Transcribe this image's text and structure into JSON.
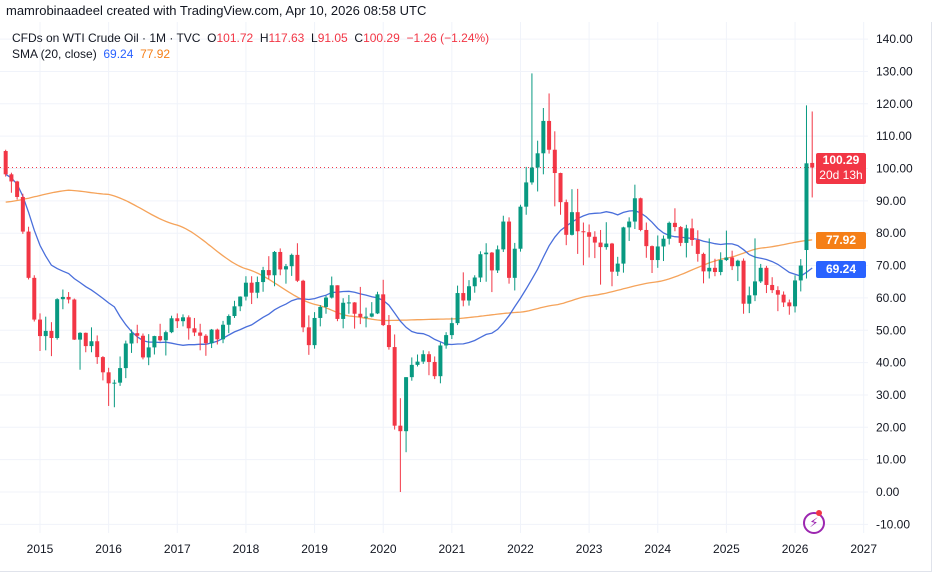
{
  "credit": "mamrobinaadeel created with TradingView.com, Apr 10, 2026 08:58 UTC",
  "legend": {
    "symbol": "CFDs on WTI Crude Oil · 1M · TVC",
    "o_label": "O",
    "o": "101.72",
    "h_label": "H",
    "h": "117.63",
    "l_label": "L",
    "l": "91.05",
    "c_label": "C",
    "c": "100.29",
    "change": "−1.26 (−1.24%)",
    "sma_label": "SMA (20, close)",
    "sma_fast": "69.24",
    "sma_slow": "77.92"
  },
  "price_label": {
    "value": "100.29",
    "countdown": "20d 13h"
  },
  "sma_fast_label": "69.24",
  "sma_slow_label": "77.92",
  "colors": {
    "up": "#089981",
    "down": "#f23645",
    "sma_fast": "#4a6fdb",
    "sma_slow": "#f5a35a",
    "sma_slow_box": "#f57f17",
    "sma_fast_box": "#2962ff"
  },
  "icons": {
    "bottom_right": "lightning-icon"
  },
  "chart_data": {
    "type": "candlestick",
    "interval": "1M",
    "ylim": [
      -10,
      140
    ],
    "y_ticks": [
      "140.00",
      "130.00",
      "120.00",
      "110.00",
      "100.00",
      "90.00",
      "80.00",
      "70.00",
      "60.00",
      "50.00",
      "40.00",
      "30.00",
      "20.00",
      "10.00",
      "0.00",
      "-10.00"
    ],
    "x_ticks": [
      "2015",
      "2016",
      "2017",
      "2018",
      "2019",
      "2020",
      "2021",
      "2022",
      "2023",
      "2024",
      "2025",
      "2026",
      "2027"
    ],
    "grid": true,
    "last_price": 100.29,
    "candles": [
      [
        "2014-07",
        105.4,
        105.8,
        97.5,
        98.2
      ],
      [
        "2014-08",
        98.2,
        98.7,
        92.5,
        96.0
      ],
      [
        "2014-09",
        96.0,
        96.2,
        90.4,
        91.2
      ],
      [
        "2014-10",
        91.2,
        92.2,
        79.8,
        80.5
      ],
      [
        "2014-11",
        80.5,
        82.0,
        65.7,
        66.2
      ],
      [
        "2014-12",
        66.2,
        67.0,
        52.7,
        53.3
      ],
      [
        "2015-01",
        53.3,
        55.2,
        43.6,
        48.2
      ],
      [
        "2015-02",
        48.2,
        54.2,
        43.8,
        49.8
      ],
      [
        "2015-03",
        49.8,
        52.5,
        42.0,
        47.6
      ],
      [
        "2015-04",
        47.6,
        59.9,
        47.1,
        59.6
      ],
      [
        "2015-05",
        59.6,
        62.6,
        56.5,
        60.3
      ],
      [
        "2015-06",
        60.3,
        61.8,
        58.3,
        59.5
      ],
      [
        "2015-07",
        59.5,
        59.8,
        47.0,
        47.1
      ],
      [
        "2015-08",
        47.1,
        49.4,
        37.8,
        49.2
      ],
      [
        "2015-09",
        49.2,
        49.3,
        43.2,
        45.1
      ],
      [
        "2015-10",
        45.1,
        50.9,
        43.2,
        46.6
      ],
      [
        "2015-11",
        46.6,
        48.4,
        39.6,
        41.7
      ],
      [
        "2015-12",
        41.7,
        42.0,
        34.5,
        37.0
      ],
      [
        "2016-01",
        37.0,
        38.4,
        26.6,
        33.6
      ],
      [
        "2016-02",
        33.6,
        34.7,
        26.2,
        33.8
      ],
      [
        "2016-03",
        33.8,
        41.9,
        32.8,
        38.3
      ],
      [
        "2016-04",
        38.3,
        46.8,
        35.2,
        45.9
      ],
      [
        "2016-05",
        45.9,
        50.2,
        43.0,
        49.1
      ],
      [
        "2016-06",
        49.1,
        51.7,
        46.0,
        48.3
      ],
      [
        "2016-07",
        48.3,
        49.0,
        41.0,
        41.6
      ],
      [
        "2016-08",
        41.6,
        48.8,
        39.2,
        44.7
      ],
      [
        "2016-09",
        44.7,
        48.3,
        42.5,
        48.2
      ],
      [
        "2016-10",
        48.2,
        52.0,
        46.5,
        46.9
      ],
      [
        "2016-11",
        46.9,
        49.9,
        42.2,
        49.4
      ],
      [
        "2016-12",
        49.4,
        54.5,
        49.1,
        53.7
      ],
      [
        "2017-01",
        53.7,
        55.2,
        50.7,
        52.8
      ],
      [
        "2017-02",
        52.8,
        54.9,
        51.2,
        54.0
      ],
      [
        "2017-03",
        54.0,
        54.6,
        47.1,
        50.6
      ],
      [
        "2017-04",
        50.6,
        53.8,
        48.2,
        49.3
      ],
      [
        "2017-05",
        49.3,
        52.0,
        43.8,
        48.3
      ],
      [
        "2017-06",
        48.3,
        48.8,
        42.1,
        46.0
      ],
      [
        "2017-07",
        46.0,
        50.4,
        44.5,
        50.2
      ],
      [
        "2017-08",
        50.2,
        50.5,
        45.6,
        47.2
      ],
      [
        "2017-09",
        47.2,
        52.9,
        46.0,
        51.7
      ],
      [
        "2017-10",
        51.7,
        54.9,
        49.1,
        54.4
      ],
      [
        "2017-11",
        54.4,
        59.1,
        53.8,
        57.4
      ],
      [
        "2017-12",
        57.4,
        60.5,
        55.9,
        60.4
      ],
      [
        "2018-01",
        60.4,
        66.7,
        59.2,
        64.7
      ],
      [
        "2018-02",
        64.7,
        66.7,
        58.1,
        61.6
      ],
      [
        "2018-03",
        61.6,
        66.6,
        59.9,
        64.9
      ],
      [
        "2018-04",
        64.9,
        69.6,
        61.9,
        68.6
      ],
      [
        "2018-05",
        68.6,
        72.9,
        65.8,
        67.0
      ],
      [
        "2018-06",
        67.0,
        74.5,
        63.6,
        74.2
      ],
      [
        "2018-07",
        74.2,
        75.3,
        67.0,
        68.8
      ],
      [
        "2018-08",
        68.8,
        70.5,
        64.4,
        69.8
      ],
      [
        "2018-09",
        69.8,
        73.7,
        66.8,
        73.3
      ],
      [
        "2018-10",
        73.3,
        76.9,
        64.9,
        65.3
      ],
      [
        "2018-11",
        65.3,
        65.6,
        49.4,
        50.9
      ],
      [
        "2018-12",
        50.9,
        54.6,
        42.4,
        45.4
      ],
      [
        "2019-01",
        45.4,
        55.6,
        44.3,
        53.8
      ],
      [
        "2019-02",
        53.8,
        57.8,
        51.2,
        57.2
      ],
      [
        "2019-03",
        57.2,
        60.7,
        55.1,
        60.1
      ],
      [
        "2019-04",
        60.1,
        66.6,
        59.8,
        63.9
      ],
      [
        "2019-05",
        63.9,
        63.9,
        52.8,
        53.5
      ],
      [
        "2019-06",
        53.5,
        59.9,
        50.6,
        58.5
      ],
      [
        "2019-07",
        58.5,
        60.9,
        55.1,
        58.6
      ],
      [
        "2019-08",
        58.6,
        58.7,
        50.5,
        55.1
      ],
      [
        "2019-09",
        55.1,
        63.4,
        51.9,
        54.1
      ],
      [
        "2019-10",
        54.1,
        57.0,
        50.9,
        54.2
      ],
      [
        "2019-11",
        54.2,
        58.7,
        54.0,
        55.2
      ],
      [
        "2019-12",
        55.2,
        61.9,
        55.0,
        61.1
      ],
      [
        "2020-01",
        61.1,
        65.6,
        51.3,
        51.6
      ],
      [
        "2020-02",
        51.6,
        54.7,
        44.0,
        44.8
      ],
      [
        "2020-03",
        44.8,
        48.7,
        19.3,
        20.5
      ],
      [
        "2020-04",
        20.5,
        29.0,
        0.0,
        18.8
      ],
      [
        "2020-05",
        18.8,
        35.5,
        12.3,
        35.5
      ],
      [
        "2020-06",
        35.5,
        41.6,
        34.4,
        39.3
      ],
      [
        "2020-07",
        39.3,
        42.5,
        38.8,
        40.3
      ],
      [
        "2020-08",
        40.3,
        43.8,
        39.6,
        42.6
      ],
      [
        "2020-09",
        42.6,
        43.5,
        36.1,
        40.2
      ],
      [
        "2020-10",
        40.2,
        41.9,
        34.9,
        35.8
      ],
      [
        "2020-11",
        35.8,
        46.2,
        33.6,
        45.3
      ],
      [
        "2020-12",
        45.3,
        49.4,
        44.3,
        48.5
      ],
      [
        "2021-01",
        48.5,
        53.9,
        47.3,
        52.2
      ],
      [
        "2021-02",
        52.2,
        63.8,
        51.6,
        61.5
      ],
      [
        "2021-03",
        61.5,
        67.9,
        57.4,
        59.2
      ],
      [
        "2021-04",
        59.2,
        65.5,
        57.6,
        63.6
      ],
      [
        "2021-05",
        63.6,
        67.0,
        61.6,
        66.3
      ],
      [
        "2021-06",
        66.3,
        74.4,
        64.9,
        73.5
      ],
      [
        "2021-07",
        73.5,
        76.9,
        65.0,
        74.0
      ],
      [
        "2021-08",
        74.0,
        74.2,
        61.8,
        68.5
      ],
      [
        "2021-09",
        68.5,
        76.2,
        67.7,
        75.0
      ],
      [
        "2021-10",
        75.0,
        85.4,
        74.2,
        83.6
      ],
      [
        "2021-11",
        83.6,
        84.9,
        64.4,
        66.2
      ],
      [
        "2021-12",
        66.2,
        77.0,
        62.3,
        75.2
      ],
      [
        "2022-01",
        75.2,
        88.8,
        74.3,
        88.2
      ],
      [
        "2022-02",
        88.2,
        100.5,
        85.7,
        95.7
      ],
      [
        "2022-03",
        95.7,
        129.4,
        95.0,
        100.3
      ],
      [
        "2022-04",
        100.3,
        108.6,
        92.9,
        104.7
      ],
      [
        "2022-05",
        104.7,
        118.7,
        98.2,
        114.7
      ],
      [
        "2022-06",
        114.7,
        123.2,
        104.6,
        105.8
      ],
      [
        "2022-07",
        105.8,
        111.5,
        88.3,
        98.6
      ],
      [
        "2022-08",
        98.6,
        98.7,
        85.7,
        89.6
      ],
      [
        "2022-09",
        89.6,
        90.4,
        76.3,
        79.5
      ],
      [
        "2022-10",
        79.5,
        93.6,
        79.3,
        86.5
      ],
      [
        "2022-11",
        86.5,
        93.7,
        73.6,
        80.6
      ],
      [
        "2022-12",
        80.6,
        83.3,
        70.1,
        80.3
      ],
      [
        "2023-01",
        80.3,
        82.7,
        72.5,
        78.9
      ],
      [
        "2023-02",
        78.9,
        80.6,
        72.3,
        77.1
      ],
      [
        "2023-03",
        77.1,
        81.0,
        64.1,
        75.7
      ],
      [
        "2023-04",
        75.7,
        83.4,
        74.9,
        76.8
      ],
      [
        "2023-05",
        76.8,
        77.0,
        63.6,
        68.1
      ],
      [
        "2023-06",
        68.1,
        72.7,
        66.8,
        70.6
      ],
      [
        "2023-07",
        70.6,
        82.0,
        67.8,
        81.8
      ],
      [
        "2023-08",
        81.8,
        84.9,
        77.6,
        83.6
      ],
      [
        "2023-09",
        83.6,
        95.0,
        81.3,
        90.8
      ],
      [
        "2023-10",
        90.8,
        91.0,
        80.6,
        81.0
      ],
      [
        "2023-11",
        81.0,
        83.3,
        72.4,
        76.0
      ],
      [
        "2023-12",
        76.0,
        76.2,
        67.7,
        71.7
      ],
      [
        "2024-01",
        71.7,
        79.3,
        69.3,
        75.9
      ],
      [
        "2024-02",
        75.9,
        79.3,
        71.4,
        78.3
      ],
      [
        "2024-03",
        78.3,
        83.6,
        76.5,
        83.2
      ],
      [
        "2024-04",
        83.2,
        87.7,
        80.6,
        81.9
      ],
      [
        "2024-05",
        81.9,
        82.2,
        76.0,
        77.0
      ],
      [
        "2024-06",
        77.0,
        82.6,
        72.5,
        81.5
      ],
      [
        "2024-07",
        81.5,
        84.5,
        76.1,
        77.9
      ],
      [
        "2024-08",
        77.9,
        80.9,
        71.2,
        73.6
      ],
      [
        "2024-09",
        73.6,
        74.0,
        64.5,
        68.2
      ],
      [
        "2024-10",
        68.2,
        78.4,
        66.0,
        69.3
      ],
      [
        "2024-11",
        69.3,
        72.1,
        66.7,
        68.0
      ],
      [
        "2024-12",
        68.0,
        74.1,
        67.0,
        71.7
      ],
      [
        "2025-01",
        71.7,
        80.8,
        71.4,
        72.5
      ],
      [
        "2025-02",
        72.5,
        74.6,
        68.6,
        69.8
      ],
      [
        "2025-03",
        69.8,
        71.8,
        65.2,
        71.5
      ],
      [
        "2025-04",
        71.5,
        72.2,
        55.1,
        58.2
      ],
      [
        "2025-05",
        58.2,
        63.5,
        55.3,
        60.8
      ],
      [
        "2025-06",
        60.8,
        78.4,
        59.0,
        65.1
      ],
      [
        "2025-07",
        65.1,
        70.5,
        64.6,
        69.3
      ],
      [
        "2025-08",
        69.3,
        69.9,
        61.5,
        64.0
      ],
      [
        "2025-09",
        64.0,
        66.4,
        61.5,
        62.4
      ],
      [
        "2025-10",
        62.4,
        63.6,
        55.9,
        61.0
      ],
      [
        "2025-11",
        61.0,
        62.0,
        57.2,
        58.6
      ],
      [
        "2025-12",
        58.6,
        59.5,
        54.8,
        57.4
      ],
      [
        "2026-01",
        57.4,
        67.0,
        55.5,
        65.4
      ],
      [
        "2026-02",
        65.4,
        72.0,
        62.0,
        70.0
      ],
      [
        "2026-03",
        74.8,
        119.5,
        66.0,
        101.6
      ],
      [
        "2026-04",
        101.72,
        117.63,
        91.05,
        100.29
      ]
    ],
    "sma_slow_points": [
      [
        "2014-07",
        89.6
      ],
      [
        "2015-06",
        93.3
      ],
      [
        "2016-01",
        92.0
      ],
      [
        "2017-01",
        82.5
      ],
      [
        "2018-01",
        69.0
      ],
      [
        "2019-01",
        58.0
      ],
      [
        "2019-07",
        54.4
      ],
      [
        "2020-01",
        53.0
      ],
      [
        "2021-01",
        53.5
      ],
      [
        "2022-01",
        55.6
      ],
      [
        "2022-07",
        57.8
      ],
      [
        "2023-01",
        60.6
      ],
      [
        "2024-01",
        65.0
      ],
      [
        "2025-01",
        72.3
      ],
      [
        "2025-07",
        75.4
      ],
      [
        "2026-04",
        77.92
      ]
    ]
  }
}
